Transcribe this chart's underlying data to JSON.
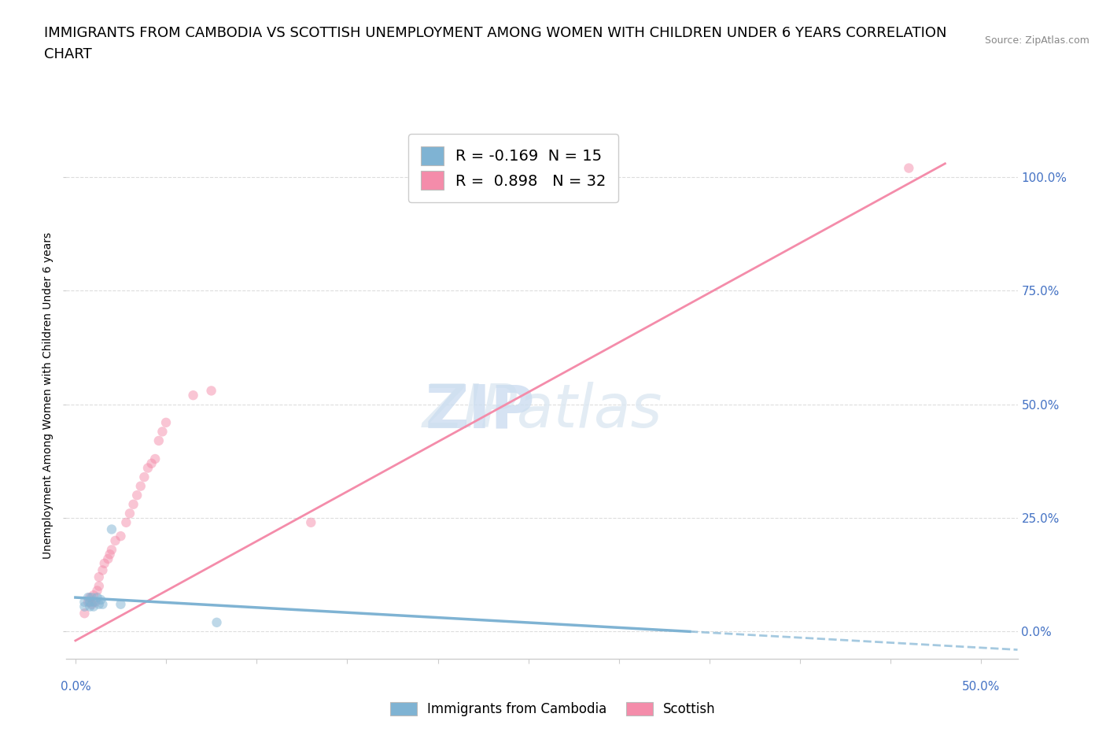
{
  "title_line1": "IMMIGRANTS FROM CAMBODIA VS SCOTTISH UNEMPLOYMENT AMONG WOMEN WITH CHILDREN UNDER 6 YEARS CORRELATION",
  "title_line2": "CHART",
  "source_text": "Source: ZipAtlas.com",
  "ylabel": "Unemployment Among Women with Children Under 6 years",
  "x_lim": [
    -0.005,
    0.52
  ],
  "y_lim": [
    -0.06,
    1.1
  ],
  "legend_entries": [
    {
      "label": "R = -0.169  N = 15",
      "color": "#aec6e8"
    },
    {
      "label": "R =  0.898   N = 32",
      "color": "#f4b8c8"
    }
  ],
  "legend_bottom": [
    {
      "label": "Immigrants from Cambodia",
      "color": "#aec6e8"
    },
    {
      "label": "Scottish",
      "color": "#f4b8c8"
    }
  ],
  "cambodia_points": [
    [
      0.005,
      0.055
    ],
    [
      0.005,
      0.065
    ],
    [
      0.007,
      0.075
    ],
    [
      0.008,
      0.055
    ],
    [
      0.008,
      0.065
    ],
    [
      0.009,
      0.075
    ],
    [
      0.01,
      0.055
    ],
    [
      0.01,
      0.065
    ],
    [
      0.012,
      0.075
    ],
    [
      0.013,
      0.06
    ],
    [
      0.014,
      0.07
    ],
    [
      0.015,
      0.06
    ],
    [
      0.02,
      0.225
    ],
    [
      0.025,
      0.06
    ],
    [
      0.078,
      0.02
    ]
  ],
  "scottish_points": [
    [
      0.005,
      0.04
    ],
    [
      0.007,
      0.065
    ],
    [
      0.008,
      0.075
    ],
    [
      0.009,
      0.06
    ],
    [
      0.01,
      0.08
    ],
    [
      0.011,
      0.065
    ],
    [
      0.012,
      0.09
    ],
    [
      0.013,
      0.1
    ],
    [
      0.013,
      0.12
    ],
    [
      0.015,
      0.135
    ],
    [
      0.016,
      0.15
    ],
    [
      0.018,
      0.16
    ],
    [
      0.019,
      0.17
    ],
    [
      0.02,
      0.18
    ],
    [
      0.022,
      0.2
    ],
    [
      0.025,
      0.21
    ],
    [
      0.028,
      0.24
    ],
    [
      0.03,
      0.26
    ],
    [
      0.032,
      0.28
    ],
    [
      0.034,
      0.3
    ],
    [
      0.036,
      0.32
    ],
    [
      0.038,
      0.34
    ],
    [
      0.04,
      0.36
    ],
    [
      0.042,
      0.37
    ],
    [
      0.044,
      0.38
    ],
    [
      0.046,
      0.42
    ],
    [
      0.048,
      0.44
    ],
    [
      0.05,
      0.46
    ],
    [
      0.065,
      0.52
    ],
    [
      0.075,
      0.53
    ],
    [
      0.13,
      0.24
    ],
    [
      0.46,
      1.02
    ]
  ],
  "cambodia_trendline": {
    "x": [
      0.0,
      0.52
    ],
    "y": [
      0.075,
      -0.04
    ]
  },
  "scottish_trendline": {
    "x": [
      0.0,
      0.48
    ],
    "y": [
      -0.02,
      1.03
    ]
  },
  "grid_color": "#dddddd",
  "cambodia_color": "#7fb3d3",
  "scottish_color": "#f48caa",
  "cambodia_trend_color": "#7fb3d3",
  "scottish_trend_color": "#f48caa",
  "background_color": "#ffffff",
  "title_fontsize": 13,
  "axis_label_fontsize": 10,
  "tick_fontsize": 11,
  "point_size": 80,
  "point_alpha": 0.5
}
